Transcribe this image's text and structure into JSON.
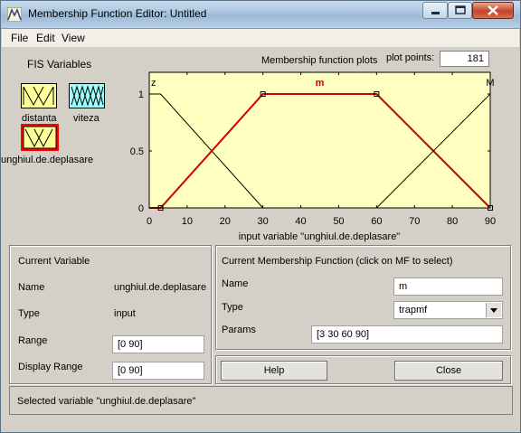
{
  "window": {
    "title": "Membership Function Editor: Untitled"
  },
  "menu": [
    "File",
    "Edit",
    "View"
  ],
  "fis": {
    "title": "FIS Variables",
    "variables": [
      {
        "name": "distanta",
        "selected": false,
        "color": "#ffff99"
      },
      {
        "name": "viteza",
        "selected": false,
        "color": "#99ffff"
      },
      {
        "name": "unghiul.de.deplasare",
        "selected": true,
        "color": "#ffff99"
      }
    ]
  },
  "plot": {
    "title": "Membership function plots",
    "plot_points_label": "plot points:",
    "plot_points_value": "181",
    "xlabel": "input variable \"unghiul.de.deplasare\""
  },
  "chart_data": {
    "type": "line",
    "xlabel": "input variable \"unghiul.de.deplasare\"",
    "xlim": [
      0,
      90
    ],
    "ylim": [
      0,
      1
    ],
    "xticks": [
      0,
      10,
      20,
      30,
      40,
      50,
      60,
      70,
      80,
      90
    ],
    "yticks": [
      0,
      0.5,
      1
    ],
    "background": "#ffffc0",
    "series": [
      {
        "name": "z",
        "points": [
          [
            0,
            1
          ],
          [
            3,
            1
          ],
          [
            30,
            0
          ],
          [
            90,
            0
          ]
        ],
        "color": "#000000",
        "selected": false
      },
      {
        "name": "m",
        "points": [
          [
            0,
            0
          ],
          [
            3,
            0
          ],
          [
            30,
            1
          ],
          [
            60,
            1
          ],
          [
            90,
            0
          ]
        ],
        "color": "#cc0000",
        "selected": true
      },
      {
        "name": "M",
        "points": [
          [
            0,
            0
          ],
          [
            60,
            0
          ],
          [
            90,
            1
          ]
        ],
        "color": "#000000",
        "selected": false
      }
    ]
  },
  "current_variable": {
    "title": "Current Variable",
    "name_label": "Name",
    "name_value": "unghiul.de.deplasare",
    "type_label": "Type",
    "type_value": "input",
    "range_label": "Range",
    "range_value": "[0 90]",
    "display_range_label": "Display Range",
    "display_range_value": "[0 90]"
  },
  "current_mf": {
    "title": "Current Membership Function (click on MF to select)",
    "name_label": "Name",
    "name_value": "m",
    "type_label": "Type",
    "type_value": "trapmf",
    "params_label": "Params",
    "params_value": "[3 30 60 90]"
  },
  "buttons": {
    "help": "Help",
    "close": "Close"
  },
  "status": "Selected variable \"unghiul.de.deplasare\""
}
